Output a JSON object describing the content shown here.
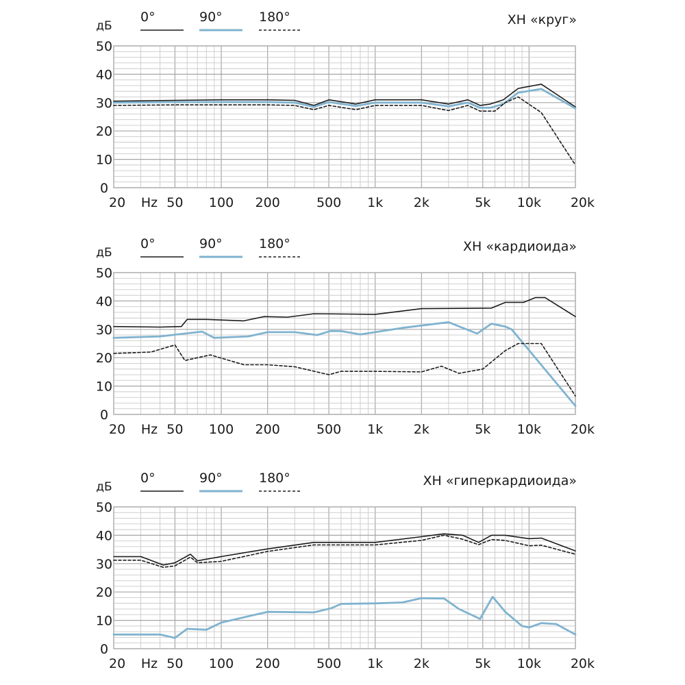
{
  "chart_data": [
    {
      "type": "line",
      "title": "ХН «круг»",
      "ylabel": "дБ",
      "xunit": "Hz",
      "xscale": "log",
      "xlim": [
        20,
        20000
      ],
      "ylim": [
        0,
        50
      ],
      "grid": true,
      "legend_position": "top-left",
      "yticks": [
        "0",
        "10",
        "20",
        "30",
        "40",
        "50"
      ],
      "xticks": [
        {
          "value": 20,
          "label": "20"
        },
        {
          "value": 50,
          "label": "50"
        },
        {
          "value": 100,
          "label": "100"
        },
        {
          "value": 200,
          "label": "200"
        },
        {
          "value": 500,
          "label": "500"
        },
        {
          "value": 1000,
          "label": "1k"
        },
        {
          "value": 2000,
          "label": "2k"
        },
        {
          "value": 5000,
          "label": "5k"
        },
        {
          "value": 10000,
          "label": "10k"
        },
        {
          "value": 20000,
          "label": "20k"
        }
      ],
      "series": [
        {
          "name": "0°",
          "color": "#1a1a1a",
          "style": "solid",
          "x": [
            20,
            50,
            100,
            200,
            300,
            400,
            500,
            750,
            1000,
            2000,
            3000,
            4000,
            4800,
            5600,
            6800,
            8500,
            12000,
            20000
          ],
          "y": [
            30.5,
            30.8,
            31,
            31,
            30.8,
            29,
            31,
            29.5,
            31,
            31,
            29.5,
            31,
            29,
            29.5,
            31,
            35,
            36.5,
            28.5
          ]
        },
        {
          "name": "90°",
          "color": "#7fb3cf",
          "style": "solid",
          "x": [
            20,
            50,
            100,
            200,
            300,
            400,
            500,
            750,
            1000,
            2000,
            3000,
            4000,
            4800,
            5600,
            6800,
            8500,
            12000,
            20000
          ],
          "y": [
            30,
            30.2,
            30.2,
            30.2,
            30,
            28.5,
            30.2,
            28.8,
            30,
            30,
            28.7,
            30,
            28.2,
            28.2,
            29.5,
            33.5,
            34.8,
            28
          ]
        },
        {
          "name": "180°",
          "color": "#1a1a1a",
          "style": "dashed",
          "x": [
            20,
            50,
            100,
            200,
            300,
            400,
            500,
            750,
            1000,
            2000,
            3000,
            4000,
            4800,
            6000,
            7000,
            8500,
            12000,
            20000
          ],
          "y": [
            29,
            29.2,
            29.2,
            29.2,
            29,
            27.5,
            29,
            27.5,
            29,
            29,
            27.2,
            29,
            27,
            27,
            30,
            32,
            26.5,
            8
          ]
        }
      ]
    },
    {
      "type": "line",
      "title": "ХН «кардиоида»",
      "ylabel": "дБ",
      "xunit": "Hz",
      "xscale": "log",
      "xlim": [
        20,
        20000
      ],
      "ylim": [
        0,
        50
      ],
      "grid": true,
      "legend_position": "top-left",
      "yticks": [
        "0",
        "10",
        "20",
        "30",
        "40",
        "50"
      ],
      "xticks": [
        {
          "value": 20,
          "label": "20"
        },
        {
          "value": 50,
          "label": "50"
        },
        {
          "value": 100,
          "label": "100"
        },
        {
          "value": 200,
          "label": "200"
        },
        {
          "value": 500,
          "label": "500"
        },
        {
          "value": 1000,
          "label": "1k"
        },
        {
          "value": 2000,
          "label": "2k"
        },
        {
          "value": 5000,
          "label": "5k"
        },
        {
          "value": 10000,
          "label": "10k"
        },
        {
          "value": 20000,
          "label": "20k"
        }
      ],
      "series": [
        {
          "name": "0°",
          "color": "#1a1a1a",
          "style": "solid",
          "x": [
            20,
            40,
            55,
            60,
            80,
            140,
            190,
            270,
            400,
            1000,
            2000,
            5700,
            7000,
            9200,
            11000,
            12700,
            20000
          ],
          "y": [
            31,
            30.8,
            31,
            33.5,
            33.5,
            33,
            34.5,
            34.3,
            35.5,
            35.3,
            37.3,
            37.5,
            39.5,
            39.5,
            41.2,
            41.2,
            34.5
          ]
        },
        {
          "name": "90°",
          "color": "#7fb3cf",
          "style": "solid",
          "x": [
            20,
            40,
            75,
            90,
            150,
            200,
            300,
            420,
            510,
            600,
            800,
            1500,
            3000,
            4600,
            5700,
            6300,
            7000,
            7700,
            20000
          ],
          "y": [
            27,
            27.5,
            29.2,
            27,
            27.5,
            29,
            29,
            28,
            29.4,
            29.4,
            28.2,
            30.5,
            32.5,
            28.5,
            32,
            31.5,
            31,
            30,
            3
          ]
        },
        {
          "name": "180°",
          "color": "#1a1a1a",
          "style": "dashed",
          "x": [
            20,
            35,
            50,
            58,
            85,
            140,
            200,
            300,
            500,
            600,
            1000,
            2000,
            2700,
            3500,
            5000,
            7000,
            8500,
            12000,
            20000
          ],
          "y": [
            21.5,
            22,
            24.5,
            19,
            21,
            17.5,
            17.5,
            16.8,
            14,
            15.2,
            15.2,
            15,
            17,
            14.5,
            16,
            22.5,
            25,
            25,
            6.5
          ]
        }
      ]
    },
    {
      "type": "line",
      "title": "ХН «гиперкардиоида»",
      "ylabel": "дБ",
      "xunit": "Hz",
      "xscale": "log",
      "xlim": [
        20,
        20000
      ],
      "ylim": [
        0,
        50
      ],
      "grid": true,
      "legend_position": "top-left",
      "yticks": [
        "0",
        "10",
        "20",
        "30",
        "40",
        "50"
      ],
      "xticks": [
        {
          "value": 20,
          "label": "20"
        },
        {
          "value": 50,
          "label": "50"
        },
        {
          "value": 100,
          "label": "100"
        },
        {
          "value": 200,
          "label": "200"
        },
        {
          "value": 500,
          "label": "500"
        },
        {
          "value": 1000,
          "label": "1k"
        },
        {
          "value": 2000,
          "label": "2k"
        },
        {
          "value": 5000,
          "label": "5k"
        },
        {
          "value": 10000,
          "label": "10k"
        },
        {
          "value": 20000,
          "label": "20k"
        }
      ],
      "series": [
        {
          "name": "0°",
          "color": "#1a1a1a",
          "style": "solid",
          "x": [
            20,
            30,
            42,
            50,
            63,
            70,
            100,
            200,
            400,
            1000,
            2000,
            2800,
            3700,
            4700,
            5700,
            7000,
            10000,
            12000,
            20000
          ],
          "y": [
            32.5,
            32.5,
            29.5,
            30.3,
            33.3,
            31,
            32.5,
            35.2,
            37.5,
            37.5,
            39.5,
            40.5,
            40,
            37.5,
            40,
            40,
            38.8,
            39,
            34.5
          ]
        },
        {
          "name": "90°",
          "color": "#7fb3cf",
          "style": "solid",
          "x": [
            20,
            40,
            50,
            60,
            80,
            100,
            200,
            400,
            520,
            600,
            1000,
            1500,
            2000,
            2800,
            3500,
            4800,
            5800,
            7000,
            9000,
            10000,
            12000,
            15000,
            20000
          ],
          "y": [
            5,
            5,
            3.8,
            7,
            6.7,
            9.2,
            13,
            12.8,
            14.3,
            15.8,
            16,
            16.3,
            17.8,
            17.7,
            14,
            10.5,
            18.3,
            13,
            8,
            7.5,
            9,
            8.7,
            5
          ]
        },
        {
          "name": "180°",
          "color": "#1a1a1a",
          "style": "dashed",
          "x": [
            20,
            30,
            42,
            50,
            63,
            70,
            100,
            200,
            400,
            1000,
            2000,
            2800,
            3700,
            4700,
            5700,
            7000,
            10000,
            12000,
            20000
          ],
          "y": [
            31.2,
            31.2,
            28.7,
            29.2,
            32.3,
            30.3,
            30.8,
            34.3,
            36.6,
            36.6,
            38.2,
            40,
            38.6,
            36.7,
            38.5,
            38.2,
            36.3,
            36.5,
            33.3
          ]
        }
      ]
    }
  ]
}
